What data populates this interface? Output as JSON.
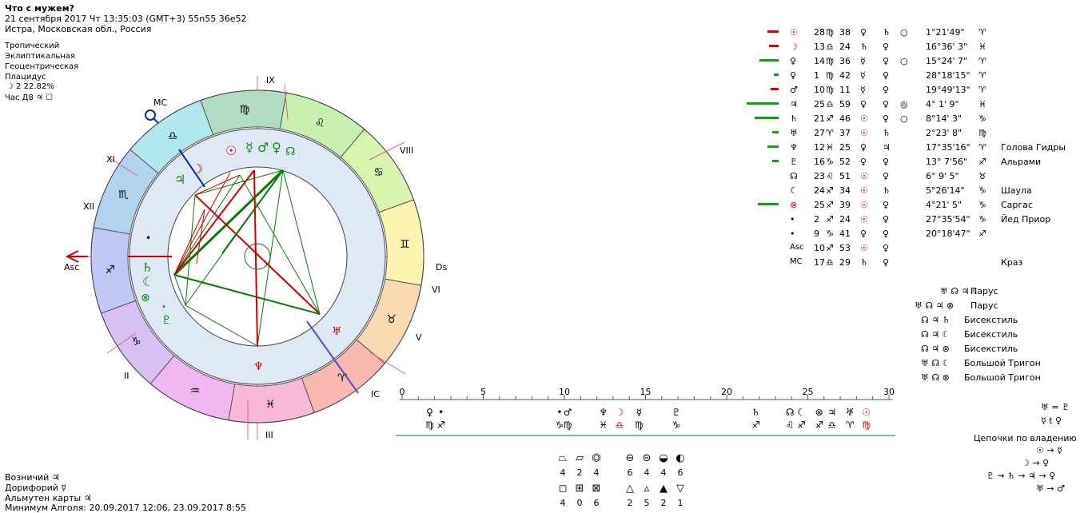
{
  "header": {
    "title": "Что с мужем?",
    "datetime": "21 сентября 2017  Чт  13:35:03 (GMT+3) 55n55  36e52",
    "place": "Истра, Московская обл., Россия",
    "settings": [
      "Тропический",
      "Эклиптикальная",
      "Геоцентрическая",
      "Плацидус"
    ],
    "moon_phase": "☽  2 22.82%",
    "hour": "Час Д8  ♃  ☐"
  },
  "chart": {
    "zodiac_signs": [
      "♈",
      "♉",
      "♊",
      "♋",
      "♌",
      "♍",
      "♎",
      "♏",
      "♐",
      "♑",
      "♒",
      "♓"
    ],
    "houses": [
      "IX",
      "VIII",
      "Dsc",
      "VI",
      "V",
      "IC",
      "III",
      "II",
      "XII",
      "XI",
      "MC",
      "Asc"
    ],
    "inner_planets": [
      "☉",
      "☿",
      "♂",
      "♀",
      "☊",
      "☽",
      "♃",
      "♄",
      "☾",
      "⊗",
      "♆",
      "♅",
      "♇",
      "•"
    ]
  },
  "positions": [
    {
      "sym": "☉",
      "deg": "28",
      "sign": "♍",
      "min": "38",
      "r1": "♀",
      "r2": "♄",
      "r3": "○",
      "dec": "1°21'49\"",
      "dsign": "♈",
      "star": "",
      "bar": "red",
      "barw": 14
    },
    {
      "sym": "☽",
      "deg": "13",
      "sign": "♎",
      "min": "24",
      "r1": "♄",
      "r2": "♀",
      "r3": "",
      "dec": "16°36' 3\"",
      "dsign": "♓",
      "star": "",
      "bar": "red",
      "barw": 12
    },
    {
      "sym": "♀",
      "deg": "14",
      "sign": "♍",
      "min": "36",
      "r1": "☿",
      "r2": "♀",
      "r3": "○",
      "dec": "15°24' 7\"",
      "dsign": "♈",
      "star": "",
      "bar": "green",
      "barw": 24
    },
    {
      "sym": "♀",
      "deg": "1",
      "sign": "♍",
      "min": "42",
      "r1": "☿",
      "r2": "♀",
      "r3": "",
      "dec": "28°18'15\"",
      "dsign": "♈",
      "star": "",
      "bar": "green",
      "barw": 6
    },
    {
      "sym": "♂",
      "deg": "10",
      "sign": "♍",
      "min": "11",
      "r1": "☿",
      "r2": "♀",
      "r3": "",
      "dec": "19°49'13\"",
      "dsign": "♈",
      "star": "",
      "bar": "red",
      "barw": 10
    },
    {
      "sym": "♃",
      "deg": "25",
      "sign": "♎",
      "min": "59",
      "r1": "♀",
      "r2": "♀",
      "r3": "◎",
      "dec": "4° 1' 9\"",
      "dsign": "♓",
      "star": "",
      "bar": "green",
      "barw": 40
    },
    {
      "sym": "♄",
      "deg": "21",
      "sign": "♐",
      "min": "46",
      "r1": "☉",
      "r2": "♀",
      "r3": "○",
      "dec": "8°14' 3\"",
      "dsign": "♑",
      "star": "",
      "bar": "green",
      "barw": 30
    },
    {
      "sym": "♅",
      "deg": "27",
      "sign": "♈",
      "min": "37",
      "r1": "☉",
      "r2": "♄",
      "r3": "",
      "dec": "2°23' 8\"",
      "dsign": "♍",
      "star": "",
      "bar": "green",
      "barw": 8
    },
    {
      "sym": "♆",
      "deg": "12",
      "sign": "♓",
      "min": "25",
      "r1": "♀",
      "r2": "♃",
      "r3": "",
      "dec": "17°35'16\"",
      "dsign": "♈",
      "star": "Голова Гидры",
      "bar": "green",
      "barw": 14
    },
    {
      "sym": "♇",
      "deg": "16",
      "sign": "♑",
      "min": "52",
      "r1": "♀",
      "r2": "♀",
      "r3": "",
      "dec": "13° 7'56\"",
      "dsign": "♐",
      "star": "Альрами",
      "bar": "green",
      "barw": 8
    },
    {
      "sym": "☊",
      "deg": "23",
      "sign": "♌",
      "min": "51",
      "r1": "☉",
      "r2": "♀",
      "r3": "",
      "dec": "6° 9' 5\"",
      "dsign": "♉",
      "star": "",
      "bar": "",
      "barw": 0
    },
    {
      "sym": "☾",
      "deg": "24",
      "sign": "♐",
      "min": "34",
      "r1": "☉",
      "r2": "♄",
      "r3": "",
      "dec": "5°26'14\"",
      "dsign": "♑",
      "star": "Шаула",
      "bar": "",
      "barw": 0
    },
    {
      "sym": "⊗",
      "deg": "25",
      "sign": "♐",
      "min": "39",
      "r1": "☉",
      "r2": "♀",
      "r3": "",
      "dec": "4°21' 5\"",
      "dsign": "♑",
      "star": "Саргас",
      "bar": "green",
      "barw": 26
    },
    {
      "sym": "•",
      "deg": "2",
      "sign": "♐",
      "min": "24",
      "r1": "☉",
      "r2": "♀",
      "r3": "",
      "dec": "27°35'54\"",
      "dsign": "♑",
      "star": "Йед Приор",
      "bar": "",
      "barw": 0
    },
    {
      "sym": "•",
      "deg": "9",
      "sign": "♑",
      "min": "41",
      "r1": "♀",
      "r2": "♀",
      "r3": "",
      "dec": "20°18'47\"",
      "dsign": "♐",
      "star": "",
      "bar": "",
      "barw": 0
    },
    {
      "sym": "Asc",
      "deg": "10",
      "sign": "♐",
      "min": "53",
      "r1": "☉",
      "r2": "♀",
      "r3": "",
      "dec": "",
      "dsign": "",
      "star": "",
      "bar": "",
      "barw": 0
    },
    {
      "sym": "MC",
      "deg": "17",
      "sign": "♎",
      "min": "29",
      "r1": "♄",
      "r2": "♀",
      "r3": "",
      "dec": "",
      "dsign": "",
      "star": "Краз",
      "bar": "",
      "barw": 0
    }
  ],
  "configurations": [
    {
      "glyphs": "♅ ☊ ♃ ☾",
      "name": "Парус"
    },
    {
      "glyphs": "♅ ☊ ♃ ⊗",
      "name": "Парус"
    },
    {
      "glyphs": "☊ ♃ ♄",
      "name": "Бисекстиль"
    },
    {
      "glyphs": "☊ ♃ ☾",
      "name": "Бисекстиль"
    },
    {
      "glyphs": "☊ ♃ ⊗",
      "name": "Бисекстиль"
    },
    {
      "glyphs": "♅ ☊ ☾",
      "name": "Большой Тригон"
    },
    {
      "glyphs": "♅ ☊ ⊗",
      "name": "Большой Тригон"
    }
  ],
  "timeline": {
    "ticks": [
      "0",
      "5",
      "10",
      "15",
      "20",
      "25",
      "30"
    ],
    "top_glyphs": [
      "♀",
      "•",
      "•",
      "♂",
      "♆",
      "☽",
      "☿",
      "♇",
      "♄",
      "☊",
      "☾",
      "⊗",
      "♃",
      "♅",
      "☉"
    ],
    "bottom_glyphs": [
      "♍",
      "♐",
      "♑",
      "♍",
      "♓",
      "♎",
      "♍",
      "♑",
      "♐",
      "♌",
      "♐",
      "♐",
      "♎",
      "♈",
      "♍"
    ]
  },
  "rulers": {
    "eq1": "♅ = ♇",
    "eq2": "☿ t ♀",
    "chains_title": "Цепочки по владению",
    "chains": [
      "☉ → ☿",
      "☽ → ♀",
      "♇ → ♄ → ♃ → ♀",
      "♅ → ♂"
    ]
  },
  "stats": {
    "row1_icons": [
      "⏢",
      "⏥",
      "⏣"
    ],
    "row1_vals": [
      "4",
      "2",
      "4"
    ],
    "row2_icons": [
      "◻",
      "⊞",
      "⊠"
    ],
    "row2_vals": [
      "4",
      "0",
      "6"
    ],
    "row3_icons": [
      "⊖",
      "⊝",
      "◒",
      "◐"
    ],
    "row3_vals": [
      "6",
      "4",
      "4",
      "6"
    ],
    "row4_icons": [
      "△",
      "▵",
      "▲",
      "▽"
    ],
    "row4_vals": [
      "2",
      "5",
      "2",
      "1"
    ]
  },
  "footer": {
    "vozn": "Возничий  ♃",
    "dorif": "Дорифорий  ☿",
    "almuten": "Альмутен карты  ♃",
    "algol": "Минимум Алголя: 20.09.2017 12:06,  23.09.2017  8:55"
  }
}
